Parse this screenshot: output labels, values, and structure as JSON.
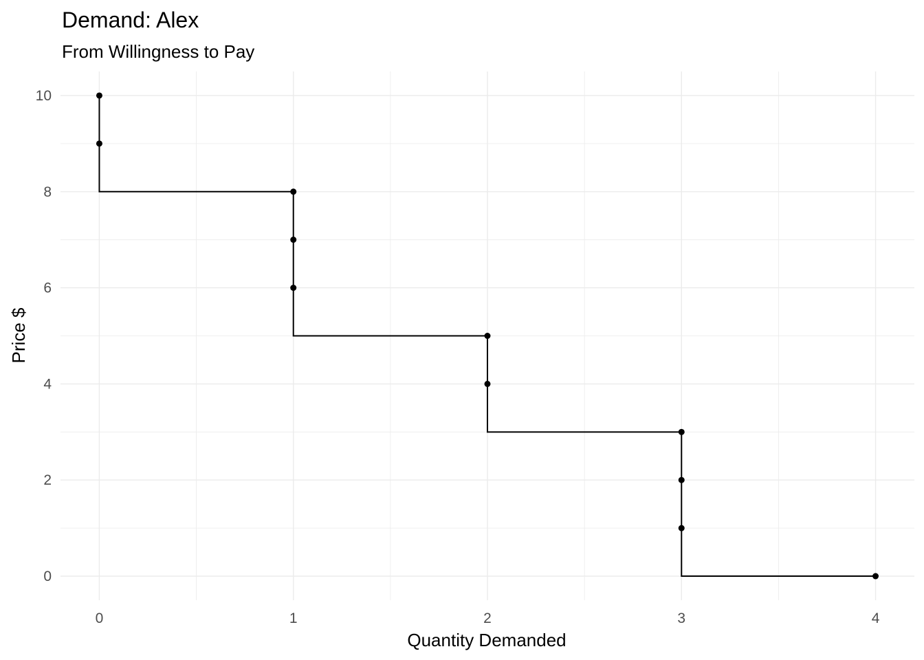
{
  "chart_data": {
    "type": "line",
    "subtype": "step-demand-curve",
    "title": "Demand: Alex",
    "subtitle": "From Willingness to Pay",
    "xlabel": "Quantity Demanded",
    "ylabel": "Price $",
    "xlim": [
      -0.2,
      4.2
    ],
    "ylim": [
      -0.5,
      10.5
    ],
    "x_ticks": [
      0,
      1,
      2,
      3,
      4
    ],
    "y_ticks": [
      0,
      2,
      4,
      6,
      8,
      10
    ],
    "grid": true,
    "legend": "none",
    "line_color": "#000000",
    "grid_color": "#ebebeb",
    "points": [
      {
        "x": 0,
        "y": 10
      },
      {
        "x": 0,
        "y": 9
      },
      {
        "x": 1,
        "y": 8
      },
      {
        "x": 1,
        "y": 7
      },
      {
        "x": 1,
        "y": 6
      },
      {
        "x": 2,
        "y": 5
      },
      {
        "x": 2,
        "y": 4
      },
      {
        "x": 3,
        "y": 3
      },
      {
        "x": 3,
        "y": 2
      },
      {
        "x": 3,
        "y": 1
      },
      {
        "x": 4,
        "y": 0
      }
    ]
  }
}
